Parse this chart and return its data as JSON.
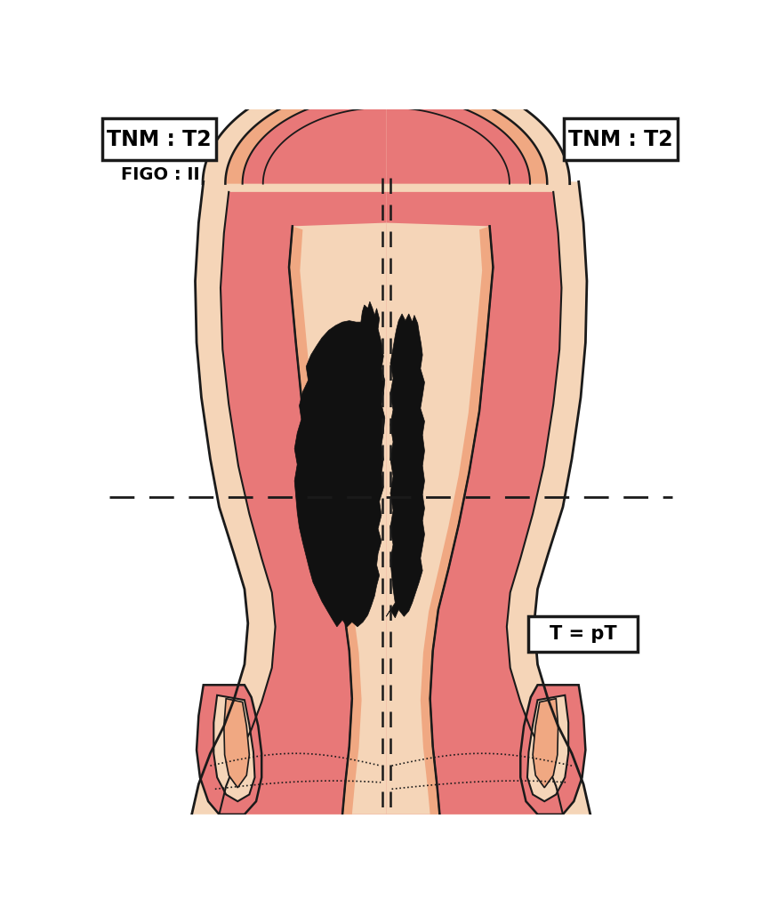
{
  "bg_color": "#ffffff",
  "outline_color": "#1a1a1a",
  "cream": "#f5d5b8",
  "salmon": "#f0a882",
  "pink_deep": "#e87878",
  "pink_med": "#ee9090",
  "tumor_color": "#111111",
  "label_tnm": "TNM : T2",
  "label_figo": "FIGO : II",
  "label_tpt": "T = pT"
}
